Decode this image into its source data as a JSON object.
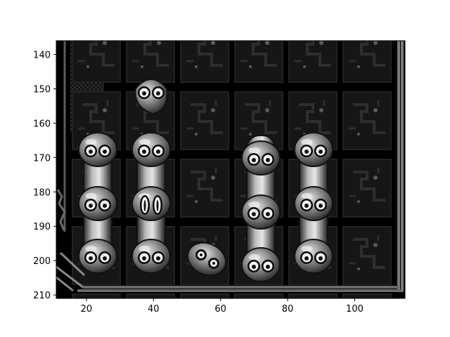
{
  "figure": {
    "x_ticks": [
      "20",
      "40",
      "60",
      "80",
      "100"
    ],
    "y_ticks": [
      "140",
      "150",
      "160",
      "170",
      "180",
      "190",
      "200",
      "210"
    ],
    "x_range": [
      11,
      115
    ],
    "y_range": [
      136,
      211
    ]
  },
  "colors": {
    "background": "#000000",
    "tile": "#161616",
    "tile_pattern": "#2e2e2e",
    "tile_dot": "#5a5a5a",
    "frame": "#7a7a7a",
    "blob_light": "#d0d0d0",
    "blob_mid": "#8c8c8c",
    "blob_dark": "#262626"
  },
  "board": {
    "columns": 6,
    "rows": 5,
    "tile_icon": "maze-pattern-tile",
    "blobs": [
      {
        "name": "blob-col1-top",
        "col": 1,
        "row": 1,
        "eyes": "round"
      },
      {
        "name": "blob-col0-chain",
        "col": 0,
        "rows": [
          2,
          4
        ],
        "eyes": "round"
      },
      {
        "name": "blob-col1-chain",
        "col": 1,
        "rows": [
          2,
          4
        ],
        "eyes": "mixed"
      },
      {
        "name": "blob-col2-small",
        "col": 2,
        "row": 4,
        "eyes": "tilted"
      },
      {
        "name": "blob-col3-chain",
        "col": 3,
        "rows": [
          2,
          4
        ],
        "eyes": "round"
      },
      {
        "name": "blob-col4-chain",
        "col": 4,
        "rows": [
          2,
          4
        ],
        "eyes": "round"
      }
    ]
  }
}
